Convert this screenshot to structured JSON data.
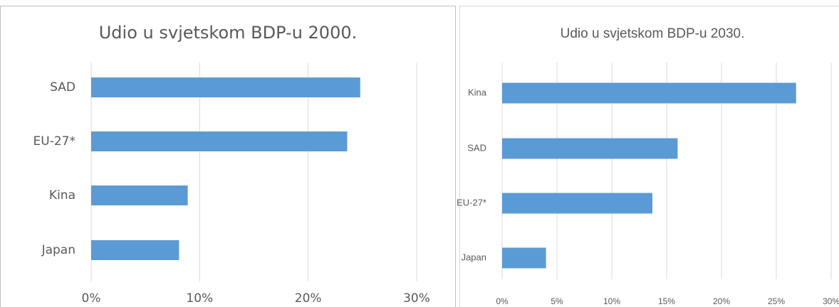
{
  "chart_data": [
    {
      "type": "bar",
      "orientation": "horizontal",
      "title": "Udio u svjetskom BDP-u 2000.",
      "categories": [
        "SAD",
        "EU-27*",
        "Kina",
        "Japan"
      ],
      "values": [
        24.8,
        23.6,
        8.9,
        8.1
      ],
      "color": "#5b9bd5",
      "xlim": [
        0,
        30
      ],
      "xticks": [
        {
          "value": 0,
          "label": "0%"
        },
        {
          "value": 10,
          "label": "10%"
        },
        {
          "value": 20,
          "label": "20%"
        },
        {
          "value": 30,
          "label": "30%"
        }
      ],
      "grid": true
    },
    {
      "type": "bar",
      "orientation": "horizontal",
      "title": "Udio u svjetskom BDP-u 2030.",
      "categories": [
        "Kina",
        "SAD",
        "EU-27*",
        "Japan"
      ],
      "values": [
        26.8,
        16.0,
        13.7,
        4.0
      ],
      "color": "#5b9bd5",
      "xlim": [
        0,
        30
      ],
      "xticks": [
        {
          "value": 0,
          "label": "0%"
        },
        {
          "value": 5,
          "label": "5%"
        },
        {
          "value": 10,
          "label": "10%"
        },
        {
          "value": 15,
          "label": "15%"
        },
        {
          "value": 20,
          "label": "20%"
        },
        {
          "value": 25,
          "label": "25%"
        },
        {
          "value": 30,
          "label": "30%"
        }
      ],
      "grid": true
    }
  ]
}
